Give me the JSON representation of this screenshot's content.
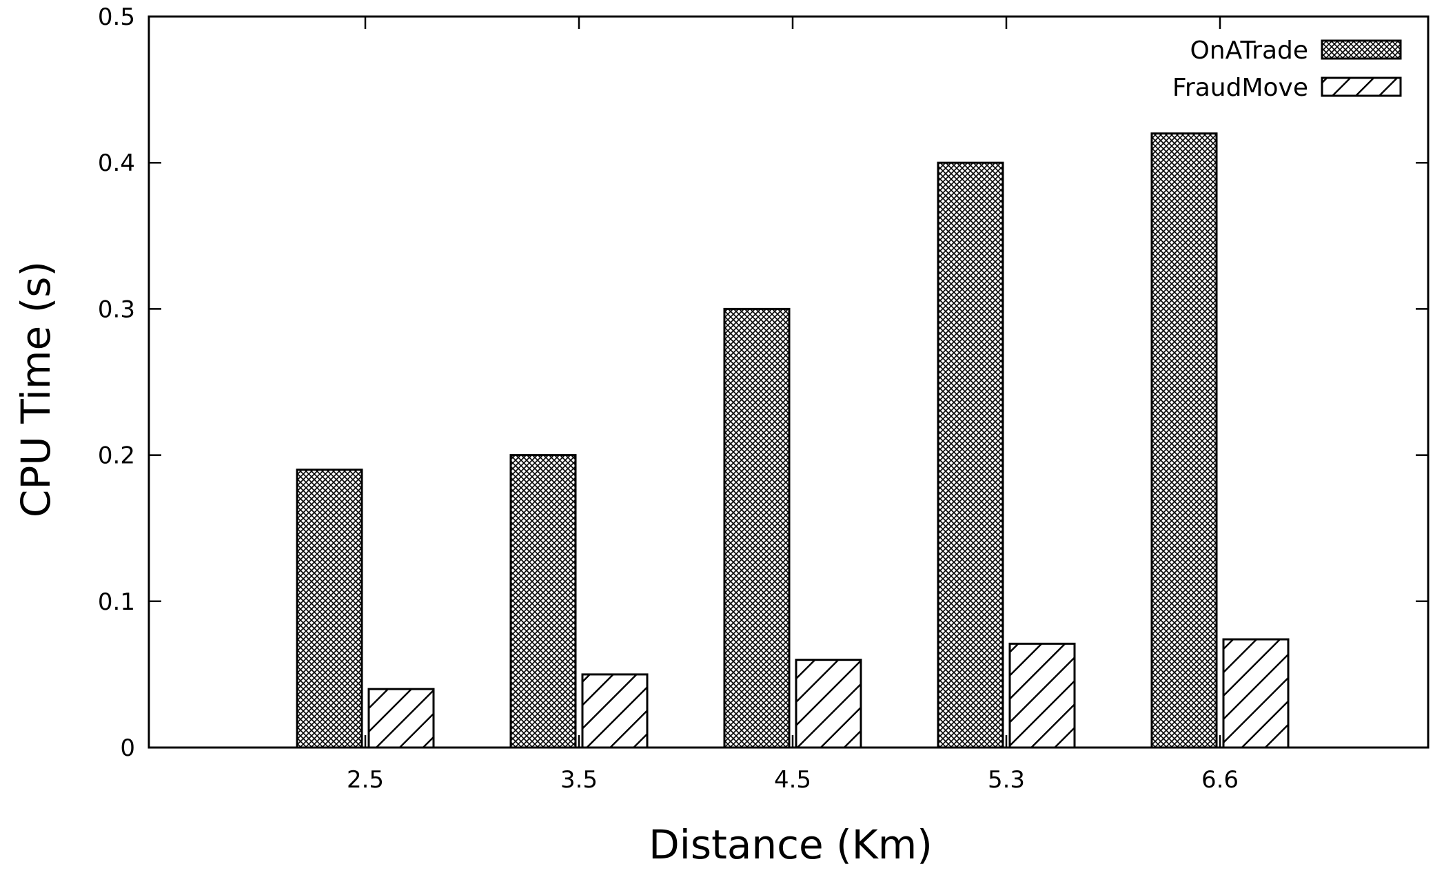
{
  "chart_data": {
    "type": "bar",
    "title": "",
    "xlabel": "Distance (Km)",
    "ylabel": "CPU Time (s)",
    "categories": [
      "2.5",
      "3.5",
      "4.5",
      "5.3",
      "6.6"
    ],
    "series": [
      {
        "name": "OnATrade",
        "values": [
          0.19,
          0.2,
          0.3,
          0.4,
          0.42
        ],
        "pattern": "crosshatch"
      },
      {
        "name": "FraudMove",
        "values": [
          0.04,
          0.05,
          0.06,
          0.071,
          0.074
        ],
        "pattern": "diagonal"
      }
    ],
    "ylim": [
      0,
      0.5
    ],
    "yticks": [
      "0",
      "0.1",
      "0.2",
      "0.3",
      "0.4",
      "0.5"
    ],
    "legend_position": "top-right",
    "grid": false,
    "colors": {
      "bar_fill": "#ffffff",
      "pattern": "#000000",
      "axis": "#000000"
    }
  }
}
